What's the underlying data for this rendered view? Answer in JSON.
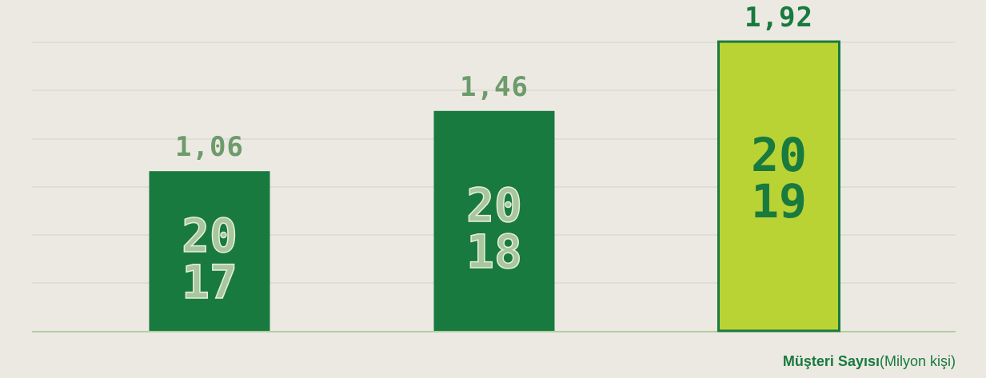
{
  "chart_data": {
    "type": "bar",
    "categories": [
      "2017",
      "2018",
      "2019"
    ],
    "values": [
      1.06,
      1.46,
      1.92
    ],
    "value_labels": [
      "1,06",
      "1,46",
      "1,92"
    ],
    "colors": [
      "#187a3e",
      "#187a3e",
      "#b9d334"
    ],
    "category_text_colors": [
      "#a8c79c",
      "#a8c79c",
      "#187a3e"
    ],
    "value_label_colors": [
      "#6e9b6b",
      "#6e9b6b",
      "#187a3e"
    ],
    "ylim": [
      0,
      2
    ],
    "y_label": "Müşteri Sayısı",
    "y_unit": "(Milyon kişi)"
  }
}
